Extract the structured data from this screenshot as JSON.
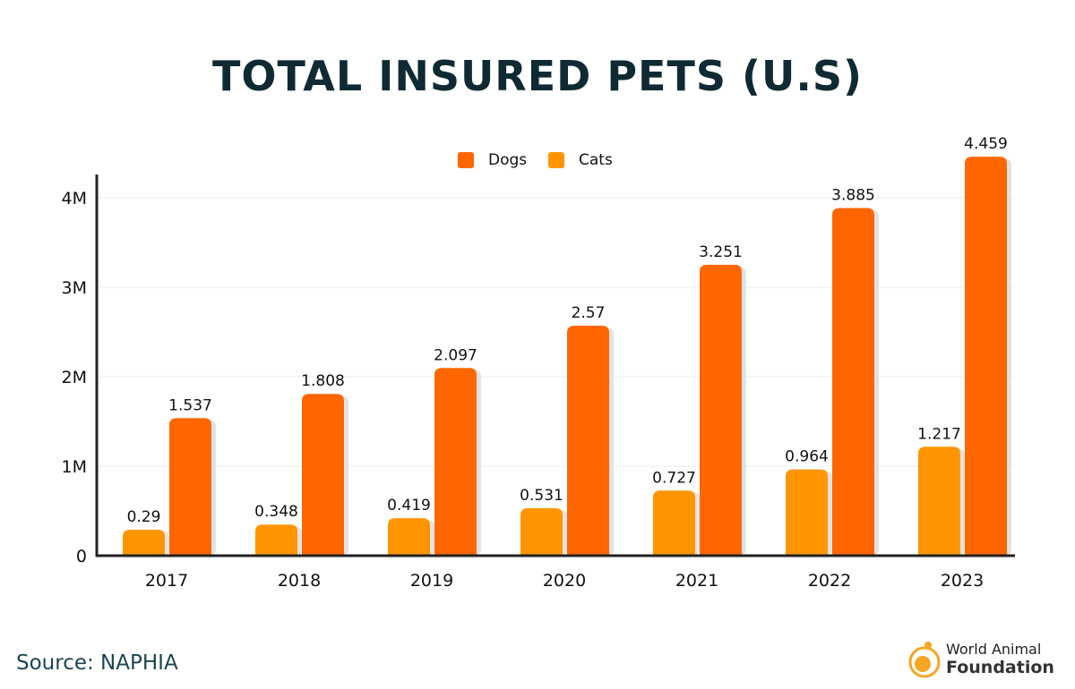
{
  "chart_data": {
    "type": "bar",
    "title": "TOTAL INSURED PETS (U.S)",
    "categories": [
      "2017",
      "2018",
      "2019",
      "2020",
      "2021",
      "2022",
      "2023"
    ],
    "series": [
      {
        "name": "Dogs",
        "values": [
          1.537,
          1.808,
          2.097,
          2.57,
          3.251,
          3.885,
          4.459
        ],
        "labels": [
          "1.537",
          "1.808",
          "2.097",
          "2.57",
          "3.251",
          "3.885",
          "4.459"
        ],
        "color": "#ff6600"
      },
      {
        "name": "Cats",
        "values": [
          0.29,
          0.348,
          0.419,
          0.531,
          0.727,
          0.964,
          1.217
        ],
        "labels": [
          "0.29",
          "0.348",
          "0.419",
          "0.531",
          "0.727",
          "0.964",
          "1.217"
        ],
        "color": "#ff9500"
      }
    ],
    "ylim": [
      0,
      4
    ],
    "yticks": [
      0,
      1,
      2,
      3,
      4
    ],
    "ytick_labels": [
      "0",
      "1M",
      "2M",
      "3M",
      "4M"
    ],
    "grid": true,
    "legend": "top-center",
    "xlabel": "",
    "ylabel": ""
  },
  "footer": {
    "source": "Source: NAPHIA"
  },
  "logo": {
    "line1": "World Animal",
    "line2": "Foundation"
  }
}
